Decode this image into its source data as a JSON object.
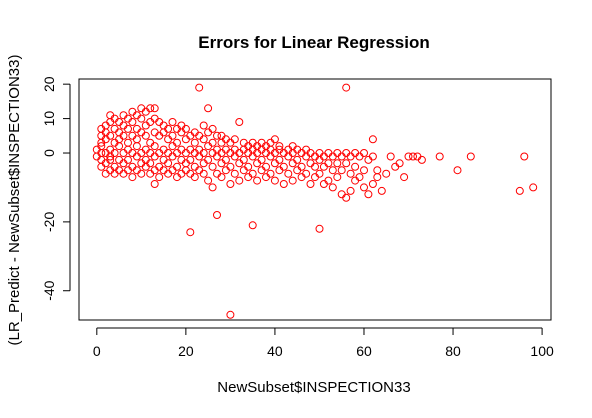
{
  "chart_data": {
    "type": "scatter",
    "title": "Errors for Linear Regression",
    "xlabel": "NewSubset$INSPECTION33",
    "ylabel": "(LR_Predict - NewSubset$INSPECTION33)",
    "xlim": [
      -4,
      102
    ],
    "ylim": [
      -48.5,
      21.5
    ],
    "xticks": [
      0,
      20,
      40,
      60,
      80,
      100
    ],
    "yticks": [
      20,
      10,
      0,
      -20,
      -40
    ],
    "grid": false,
    "legend": "none",
    "color": "#ff0000",
    "series": [
      {
        "points": [
          [
            0,
            1
          ],
          [
            0,
            -1
          ],
          [
            1,
            0
          ],
          [
            1,
            2
          ],
          [
            1,
            -2
          ],
          [
            1,
            5
          ],
          [
            1,
            7
          ],
          [
            1,
            3
          ],
          [
            1,
            -4
          ],
          [
            2,
            0
          ],
          [
            2,
            4
          ],
          [
            2,
            -3
          ],
          [
            2,
            6
          ],
          [
            2,
            8
          ],
          [
            2,
            -6
          ],
          [
            3,
            1
          ],
          [
            3,
            -1
          ],
          [
            3,
            5
          ],
          [
            3,
            9
          ],
          [
            3,
            -5
          ],
          [
            3,
            11
          ],
          [
            3,
            -2
          ],
          [
            4,
            0
          ],
          [
            4,
            3
          ],
          [
            4,
            7
          ],
          [
            4,
            -4
          ],
          [
            4,
            10
          ],
          [
            4,
            -6
          ],
          [
            5,
            2
          ],
          [
            5,
            -2
          ],
          [
            5,
            6
          ],
          [
            5,
            9
          ],
          [
            5,
            -5
          ],
          [
            5,
            4
          ],
          [
            6,
            0
          ],
          [
            6,
            8
          ],
          [
            6,
            -3
          ],
          [
            6,
            11
          ],
          [
            6,
            5
          ],
          [
            6,
            -6
          ],
          [
            7,
            1
          ],
          [
            7,
            -2
          ],
          [
            7,
            7
          ],
          [
            7,
            10
          ],
          [
            7,
            3
          ],
          [
            7,
            -5
          ],
          [
            8,
            0
          ],
          [
            8,
            5
          ],
          [
            8,
            9
          ],
          [
            8,
            -4
          ],
          [
            8,
            12
          ],
          [
            8,
            -7
          ],
          [
            9,
            2
          ],
          [
            9,
            -1
          ],
          [
            9,
            7
          ],
          [
            9,
            11
          ],
          [
            9,
            -5
          ],
          [
            9,
            4
          ],
          [
            10,
            0
          ],
          [
            10,
            6
          ],
          [
            10,
            10
          ],
          [
            10,
            -3
          ],
          [
            10,
            13
          ],
          [
            10,
            -6
          ],
          [
            11,
            1
          ],
          [
            11,
            -2
          ],
          [
            11,
            8
          ],
          [
            11,
            12
          ],
          [
            11,
            -4
          ],
          [
            11,
            5
          ],
          [
            12,
            0
          ],
          [
            12,
            3
          ],
          [
            12,
            9
          ],
          [
            12,
            -3
          ],
          [
            12,
            13
          ],
          [
            12,
            -6
          ],
          [
            13,
            2
          ],
          [
            13,
            -1
          ],
          [
            13,
            6
          ],
          [
            13,
            10
          ],
          [
            13,
            -5
          ],
          [
            13,
            -9
          ],
          [
            13,
            13
          ],
          [
            14,
            0
          ],
          [
            14,
            5
          ],
          [
            14,
            9
          ],
          [
            14,
            -4
          ],
          [
            14,
            -7
          ],
          [
            15,
            1
          ],
          [
            15,
            -2
          ],
          [
            15,
            6
          ],
          [
            15,
            -5
          ],
          [
            15,
            8
          ],
          [
            16,
            0
          ],
          [
            16,
            4
          ],
          [
            16,
            -3
          ],
          [
            16,
            7
          ],
          [
            16,
            -6
          ],
          [
            17,
            2
          ],
          [
            17,
            -1
          ],
          [
            17,
            5
          ],
          [
            17,
            -5
          ],
          [
            17,
            9
          ],
          [
            18,
            0
          ],
          [
            18,
            3
          ],
          [
            18,
            -4
          ],
          [
            18,
            7
          ],
          [
            18,
            -7
          ],
          [
            19,
            1
          ],
          [
            19,
            -2
          ],
          [
            19,
            6
          ],
          [
            19,
            -6
          ],
          [
            19,
            8
          ],
          [
            20,
            0
          ],
          [
            20,
            4
          ],
          [
            20,
            -3
          ],
          [
            20,
            7
          ],
          [
            20,
            -5
          ],
          [
            21,
            1
          ],
          [
            21,
            -2
          ],
          [
            21,
            5
          ],
          [
            21,
            -6
          ],
          [
            21,
            -23
          ],
          [
            22,
            0
          ],
          [
            22,
            3
          ],
          [
            22,
            -4
          ],
          [
            22,
            6
          ],
          [
            22,
            -7
          ],
          [
            23,
            19
          ],
          [
            23,
            1
          ],
          [
            23,
            -1
          ],
          [
            23,
            5
          ],
          [
            23,
            -5
          ],
          [
            24,
            0
          ],
          [
            24,
            4
          ],
          [
            24,
            -3
          ],
          [
            24,
            8
          ],
          [
            24,
            -6
          ],
          [
            25,
            13
          ],
          [
            25,
            2
          ],
          [
            25,
            -2
          ],
          [
            25,
            6
          ],
          [
            25,
            -8
          ],
          [
            26,
            0
          ],
          [
            26,
            3
          ],
          [
            26,
            -4
          ],
          [
            26,
            7
          ],
          [
            26,
            -10
          ],
          [
            27,
            -18
          ],
          [
            27,
            1
          ],
          [
            27,
            -1
          ],
          [
            27,
            5
          ],
          [
            27,
            -6
          ],
          [
            28,
            0
          ],
          [
            28,
            3
          ],
          [
            28,
            -3
          ],
          [
            28,
            5
          ],
          [
            28,
            -7
          ],
          [
            29,
            1
          ],
          [
            29,
            -2
          ],
          [
            29,
            4
          ],
          [
            29,
            -5
          ],
          [
            30,
            -47
          ],
          [
            30,
            0
          ],
          [
            30,
            3
          ],
          [
            30,
            -4
          ],
          [
            30,
            -9
          ],
          [
            31,
            1
          ],
          [
            31,
            -1
          ],
          [
            31,
            4
          ],
          [
            31,
            -6
          ],
          [
            32,
            0
          ],
          [
            32,
            9
          ],
          [
            32,
            -3
          ],
          [
            32,
            -8
          ],
          [
            33,
            1
          ],
          [
            33,
            -2
          ],
          [
            33,
            3
          ],
          [
            33,
            -5
          ],
          [
            34,
            0
          ],
          [
            34,
            2
          ],
          [
            34,
            -4
          ],
          [
            34,
            -7
          ],
          [
            35,
            -21
          ],
          [
            35,
            1
          ],
          [
            35,
            -1
          ],
          [
            35,
            3
          ],
          [
            35,
            -6
          ],
          [
            36,
            0
          ],
          [
            36,
            2
          ],
          [
            36,
            -3
          ],
          [
            36,
            -8
          ],
          [
            37,
            1
          ],
          [
            37,
            -2
          ],
          [
            37,
            3
          ],
          [
            37,
            -5
          ],
          [
            38,
            0
          ],
          [
            38,
            2
          ],
          [
            38,
            -4
          ],
          [
            38,
            -7
          ],
          [
            39,
            1
          ],
          [
            39,
            -1
          ],
          [
            39,
            3
          ],
          [
            39,
            -6
          ],
          [
            40,
            0
          ],
          [
            40,
            4
          ],
          [
            40,
            -3
          ],
          [
            40,
            -8
          ],
          [
            41,
            1
          ],
          [
            41,
            -2
          ],
          [
            41,
            2
          ],
          [
            41,
            -5
          ],
          [
            42,
            0
          ],
          [
            42,
            -4
          ],
          [
            42,
            -9
          ],
          [
            43,
            1
          ],
          [
            43,
            -1
          ],
          [
            43,
            -6
          ],
          [
            44,
            0
          ],
          [
            44,
            -3
          ],
          [
            44,
            2
          ],
          [
            44,
            -8
          ],
          [
            45,
            1
          ],
          [
            45,
            -2
          ],
          [
            45,
            -5
          ],
          [
            46,
            0
          ],
          [
            46,
            -4
          ],
          [
            46,
            -7
          ],
          [
            47,
            1
          ],
          [
            47,
            -1
          ],
          [
            47,
            -6
          ],
          [
            48,
            0
          ],
          [
            48,
            -3
          ],
          [
            48,
            -9
          ],
          [
            49,
            -1
          ],
          [
            49,
            -4
          ],
          [
            49,
            -7
          ],
          [
            50,
            -22
          ],
          [
            50,
            0
          ],
          [
            50,
            -2
          ],
          [
            50,
            -6
          ],
          [
            51,
            -1
          ],
          [
            51,
            -4
          ],
          [
            51,
            -9
          ],
          [
            52,
            0
          ],
          [
            52,
            -3
          ],
          [
            52,
            -8
          ],
          [
            53,
            -1
          ],
          [
            53,
            -5
          ],
          [
            53,
            -10
          ],
          [
            54,
            0
          ],
          [
            54,
            -3
          ],
          [
            54,
            -7
          ],
          [
            55,
            -1
          ],
          [
            55,
            -5
          ],
          [
            55,
            -12
          ],
          [
            56,
            19
          ],
          [
            56,
            0
          ],
          [
            56,
            -3
          ],
          [
            56,
            -13
          ],
          [
            57,
            -1
          ],
          [
            57,
            -6
          ],
          [
            57,
            -11
          ],
          [
            58,
            0
          ],
          [
            58,
            -4
          ],
          [
            58,
            -8
          ],
          [
            59,
            -1
          ],
          [
            59,
            -7
          ],
          [
            60,
            0
          ],
          [
            60,
            -5
          ],
          [
            60,
            -10
          ],
          [
            61,
            -2
          ],
          [
            61,
            -12
          ],
          [
            62,
            4
          ],
          [
            62,
            -1
          ],
          [
            62,
            -9
          ],
          [
            63,
            -5
          ],
          [
            63,
            -7
          ],
          [
            64,
            -11
          ],
          [
            65,
            -6
          ],
          [
            66,
            -1
          ],
          [
            67,
            -4
          ],
          [
            68,
            -3
          ],
          [
            69,
            -7
          ],
          [
            70,
            -1
          ],
          [
            71,
            -1
          ],
          [
            72,
            -1
          ],
          [
            73,
            -2
          ],
          [
            77,
            -1
          ],
          [
            81,
            -5
          ],
          [
            84,
            -1
          ],
          [
            95,
            -11
          ],
          [
            96,
            -1
          ],
          [
            98,
            -10
          ]
        ]
      }
    ]
  }
}
